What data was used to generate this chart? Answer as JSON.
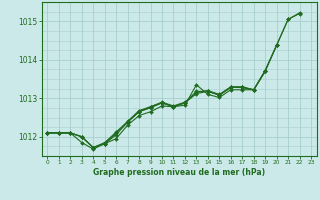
{
  "xlabel": "Graphe pression niveau de la mer (hPa)",
  "x": [
    0,
    1,
    2,
    3,
    4,
    5,
    6,
    7,
    8,
    9,
    10,
    11,
    12,
    13,
    14,
    15,
    16,
    17,
    18,
    19,
    20,
    21,
    22,
    23
  ],
  "series": [
    [
      1012.1,
      1012.1,
      1012.1,
      1011.85,
      1011.68,
      1011.82,
      1011.95,
      1012.3,
      1012.55,
      1012.65,
      1012.8,
      1012.78,
      1012.82,
      1013.35,
      1013.1,
      1013.02,
      1013.22,
      1013.22,
      1013.22,
      1013.72,
      1014.38,
      1015.05,
      1015.2,
      null
    ],
    [
      1012.1,
      1012.1,
      1012.1,
      1012.0,
      1011.72,
      1011.82,
      1012.05,
      1012.38,
      1012.65,
      1012.75,
      1012.88,
      1012.78,
      1012.88,
      1013.12,
      1013.18,
      1013.08,
      1013.28,
      1013.28,
      1013.22,
      1013.7,
      null,
      null,
      null,
      null
    ],
    [
      1012.1,
      1012.1,
      1012.1,
      1012.0,
      1011.72,
      1011.82,
      1012.1,
      1012.38,
      1012.65,
      1012.78,
      1012.88,
      1012.78,
      1012.88,
      1013.18,
      1013.18,
      1013.08,
      1013.28,
      1013.28,
      1013.22,
      1013.7,
      1014.38,
      1015.05,
      1015.22,
      null
    ],
    [
      1012.1,
      1012.1,
      1012.1,
      1012.0,
      1011.72,
      1011.85,
      1012.12,
      1012.4,
      1012.68,
      1012.78,
      1012.9,
      1012.8,
      1012.9,
      1013.15,
      1013.2,
      1013.1,
      1013.3,
      1013.3,
      1013.22,
      1013.72,
      1014.38,
      null,
      null,
      null
    ]
  ],
  "line_color": "#1f6b1f",
  "marker_color": "#1f6b1f",
  "bg_color": "#cce9e9",
  "grid_color": "#a8cece",
  "axis_color": "#1f6b1f",
  "ylim": [
    1011.5,
    1015.5
  ],
  "yticks": [
    1012,
    1013,
    1014,
    1015
  ],
  "figsize": [
    3.2,
    2.0
  ],
  "dpi": 100
}
